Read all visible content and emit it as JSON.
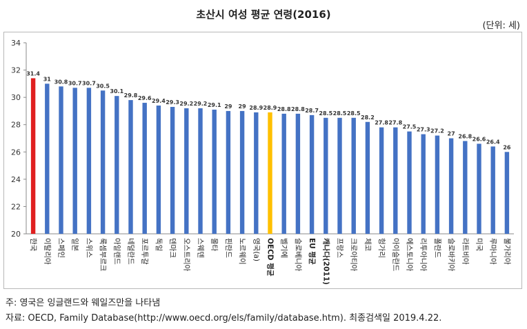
{
  "title": "초산시 여성 평균 연령(2016)",
  "unit": "(단위: 세)",
  "notes": {
    "note": "주: 영국은 잉글랜드와 웨일즈만을 나타냄",
    "source": "자료: OECD, Family Database(http://www.oecd.org/els/family/database.htm). 최종검색일 2019.4.22."
  },
  "colors": {
    "default": "#4472c4",
    "highlight_korea": "#e02020",
    "highlight_oecd": "#ffc000"
  },
  "chart_data": {
    "type": "bar",
    "title": "초산시 여성 평균 연령(2016)",
    "ylim": [
      20,
      34
    ],
    "yticks": [
      20,
      22,
      24,
      26,
      28,
      30,
      32,
      34
    ],
    "grid": false,
    "categories": [
      "한국",
      "이탈리아",
      "스페인",
      "일본",
      "스위스",
      "룩셈부르크",
      "아일랜드",
      "네덜란드",
      "포르투갈",
      "독일",
      "덴마크",
      "오스트리아",
      "스웨덴",
      "몰타",
      "핀란드",
      "노르웨이",
      "영국(a)",
      "OECD 평균",
      "벨기에",
      "슬로베니아",
      "EU 평균",
      "캐나다(2011)",
      "프랑스",
      "크로아티아",
      "체코",
      "헝가리",
      "아이슬란드",
      "에스토니아",
      "리투아니아",
      "폴란드",
      "슬로바키아",
      "라트비아",
      "미국",
      "루마니아",
      "불가리아"
    ],
    "values": [
      31.4,
      31,
      30.8,
      30.7,
      30.7,
      30.5,
      30.1,
      29.8,
      29.6,
      29.4,
      29.3,
      29.2,
      29.2,
      29.1,
      29,
      29,
      28.9,
      28.9,
      28.8,
      28.8,
      28.7,
      28.5,
      28.5,
      28.5,
      28.2,
      27.8,
      27.8,
      27.5,
      27.3,
      27.2,
      27,
      26.8,
      26.6,
      26.4,
      26
    ],
    "labels": [
      "31.4",
      "31",
      "30.8",
      "30.7",
      "30.7",
      "30.5",
      "30.1",
      "29.8",
      "29.6",
      "29.4",
      "29.3",
      "29.2",
      "29.2",
      "29.1",
      "29",
      "29",
      "28.9",
      "28.9",
      "28.8",
      "28.8",
      "28.7",
      "28.5",
      "28.5",
      "28.5",
      "28.2",
      "27.8",
      "27.8",
      "27.5",
      "27.3",
      "27.2",
      "27",
      "26.8",
      "26.6",
      "26.4",
      "26"
    ],
    "highlight": {
      "한국": "highlight_korea",
      "OECD 평균": "highlight_oecd"
    }
  }
}
